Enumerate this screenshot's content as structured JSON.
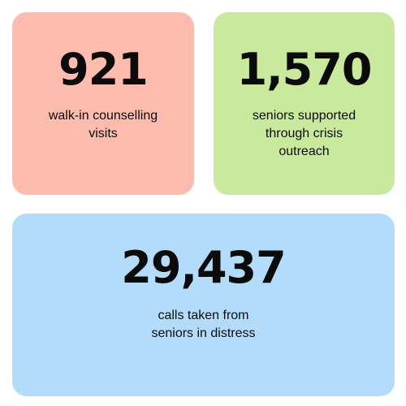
{
  "cards": [
    {
      "value": "921",
      "label_lines": [
        "walk-in counselling",
        "visits"
      ],
      "color": "#fdbcad"
    },
    {
      "value": "1,570",
      "label_lines": [
        "seniors supported",
        "through crisis",
        "outreach"
      ],
      "color": "#c9e99d"
    },
    {
      "value": "29,437",
      "label_lines": [
        "calls taken from",
        "seniors in distress"
      ],
      "color": "#b3dcfb"
    }
  ]
}
